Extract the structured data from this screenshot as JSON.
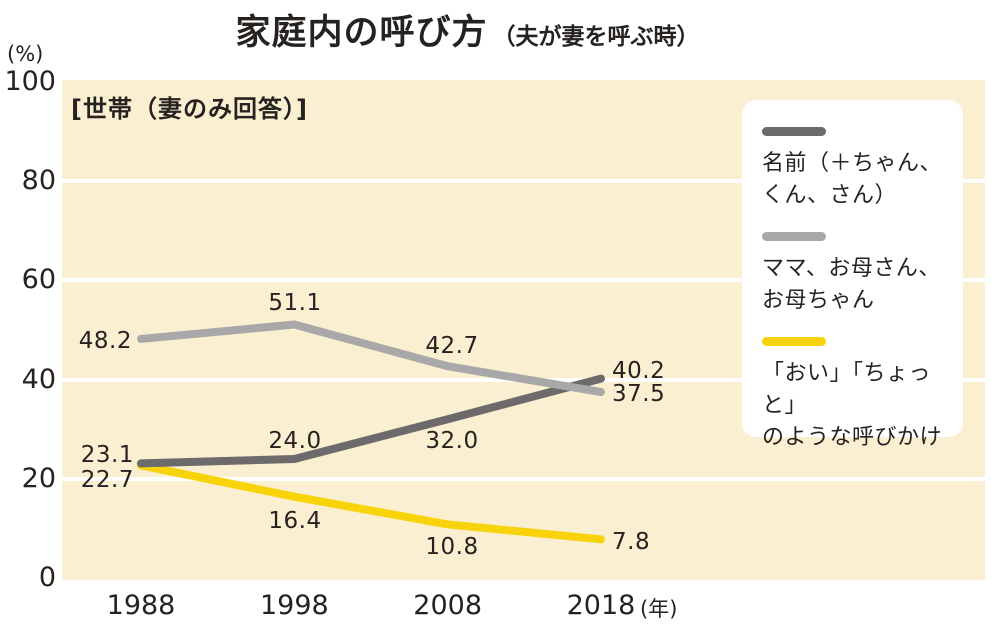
{
  "header": {
    "title": "家庭内の呼び方",
    "subtitle": "（夫が妻を呼ぶ時）"
  },
  "chart_data": {
    "type": "line",
    "title": "家庭内の呼び方（夫が妻を呼ぶ時）",
    "note": "[世帯（妻のみ回答）]",
    "y_axis_unit": "(%)",
    "x_axis_unit": "(年)",
    "categories": [
      "1988",
      "1998",
      "2008",
      "2018"
    ],
    "ylim": [
      0,
      100
    ],
    "yticks": [
      0,
      20,
      40,
      60,
      80,
      100
    ],
    "grid": "horizontal",
    "legend_position": "right",
    "series": [
      {
        "name": "名前（＋ちゃん、くん、さん）",
        "legend_label": "名前（＋ちゃん、\nくん、さん）",
        "color": "#6c6a6a",
        "values": [
          23.1,
          24.0,
          32.0,
          40.2
        ]
      },
      {
        "name": "ママ、お母さん、お母ちゃん",
        "legend_label": "ママ、お母さん、\nお母ちゃん",
        "color": "#a9a8a8",
        "values": [
          48.2,
          51.1,
          42.7,
          37.5
        ]
      },
      {
        "name": "「おい」「ちょっと」のような呼びかけ",
        "legend_label": "「おい」「ちょっと」\nのような呼びかけ",
        "color": "#f9d30a",
        "values": [
          22.7,
          16.4,
          10.8,
          7.8
        ]
      }
    ],
    "colors": {
      "plot_background": "#fbefd2",
      "gridline": "#ffffff",
      "text": "#262220",
      "page_background": "#ffffff"
    }
  }
}
